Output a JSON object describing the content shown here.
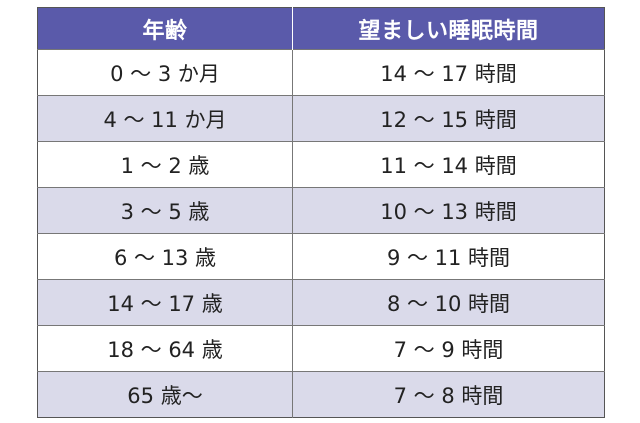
{
  "table": {
    "headers": [
      "年齢",
      "望ましい睡眠時間"
    ],
    "rows": [
      [
        "0 〜 3 か月",
        "14 〜 17 時間"
      ],
      [
        "4 〜 11 か月",
        "12 〜 15 時間"
      ],
      [
        "1 〜 2 歳",
        "11 〜 14 時間"
      ],
      [
        "3 〜 5 歳",
        "10 〜 13 時間"
      ],
      [
        "6 〜 13 歳",
        "9 〜 11 時間"
      ],
      [
        "14 〜 17 歳",
        "8 〜 10 時間"
      ],
      [
        "18 〜 64 歳",
        "7 〜 9 時間"
      ],
      [
        "65 歳〜",
        "7 〜 8 時間"
      ]
    ]
  },
  "colors": {
    "header_background": "#5a5aaa",
    "header_text": "#ffffff",
    "stripe_background": "#dadaea",
    "row_background": "#ffffff"
  }
}
